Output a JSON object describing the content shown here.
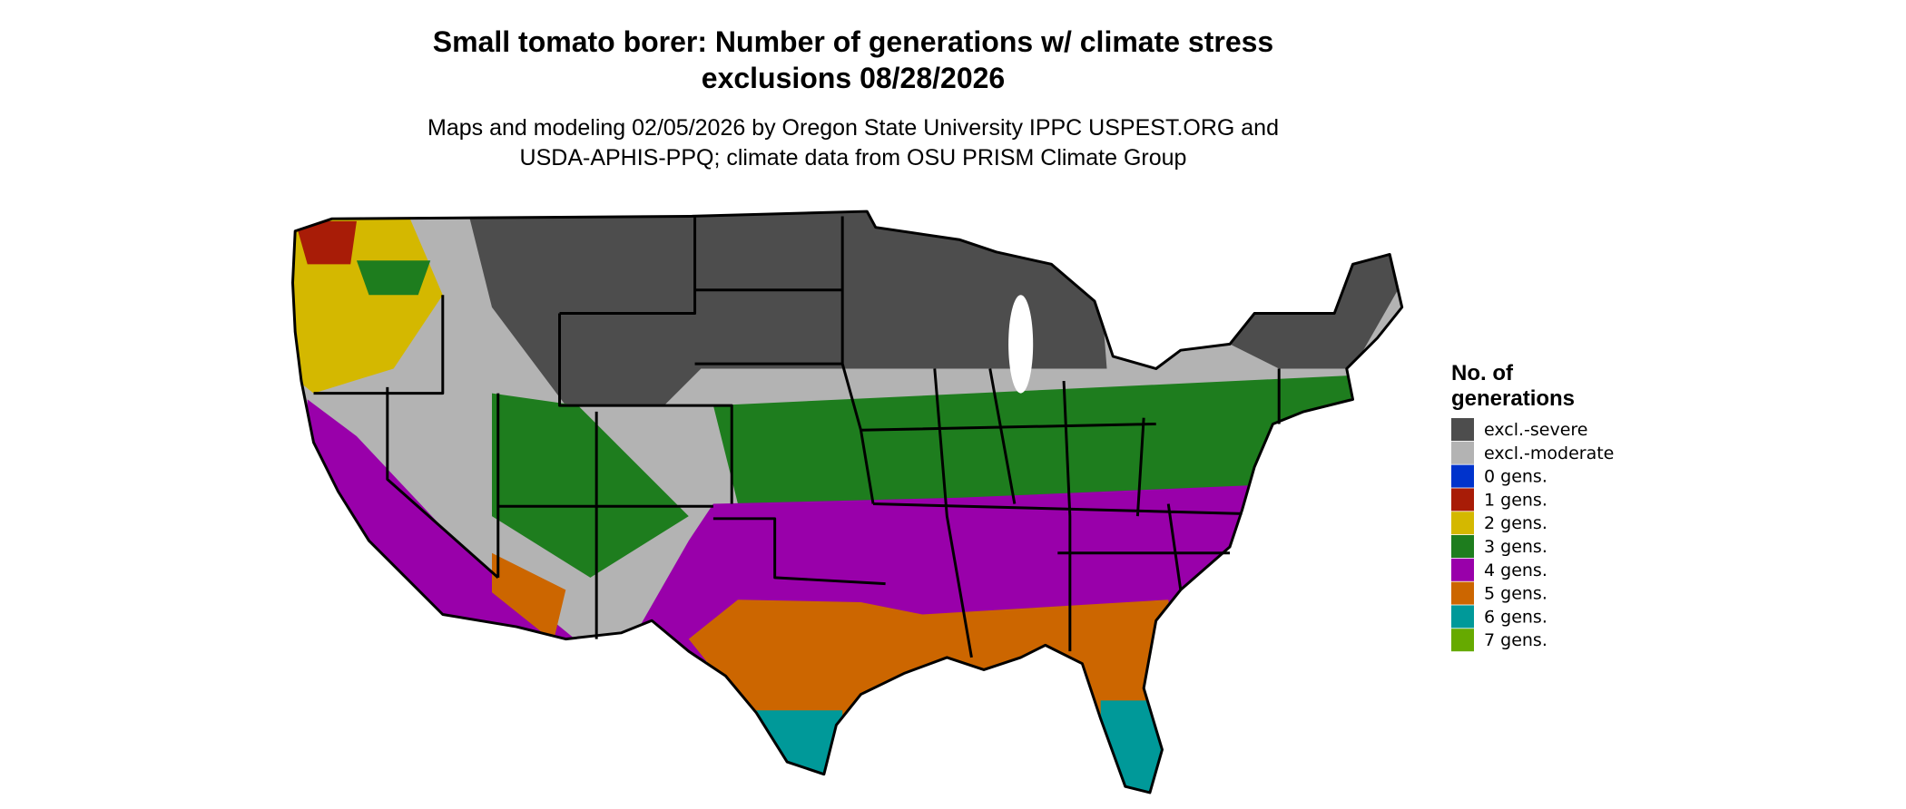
{
  "title": [
    "Small tomato borer: Number of generations w/ climate stress",
    "exclusions 08/28/2026"
  ],
  "subtitle": [
    "Maps and modeling 02/05/2026 by Oregon State University IPPC USPEST.ORG and",
    "USDA-APHIS-PPQ; climate data from OSU PRISM Climate Group"
  ],
  "legend": {
    "title": [
      "No. of",
      "generations"
    ],
    "items": [
      {
        "label": "excl.-severe",
        "color": "#4d4d4d"
      },
      {
        "label": "excl.-moderate",
        "color": "#b3b3b3"
      },
      {
        "label": "0 gens.",
        "color": "#0033cc"
      },
      {
        "label": "1 gens.",
        "color": "#a81c07"
      },
      {
        "label": "2 gens.",
        "color": "#d4b800"
      },
      {
        "label": "3 gens.",
        "color": "#1e7d1e"
      },
      {
        "label": "4 gens.",
        "color": "#9900aa"
      },
      {
        "label": "5 gens.",
        "color": "#cc6600"
      },
      {
        "label": "6 gens.",
        "color": "#009999"
      },
      {
        "label": "7 gens.",
        "color": "#66aa00"
      }
    ]
  }
}
